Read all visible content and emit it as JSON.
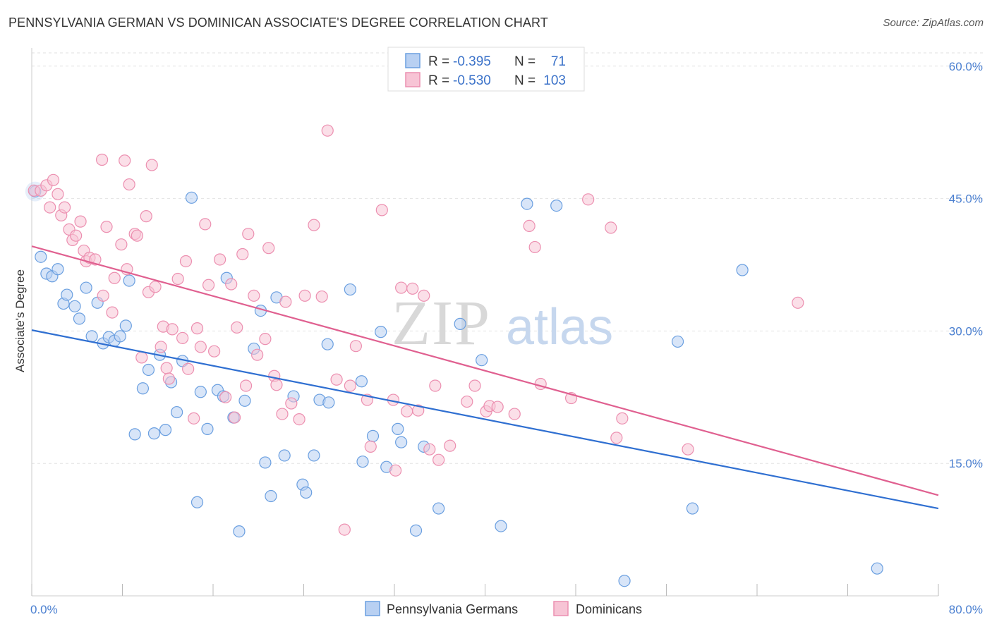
{
  "title": "PENNSYLVANIA GERMAN VS DOMINICAN ASSOCIATE'S DEGREE CORRELATION CHART",
  "source": "Source: ZipAtlas.com",
  "watermark": {
    "zip": "ZIP",
    "atlas": "atlas"
  },
  "chart_data": {
    "type": "scatter",
    "xlabel": "",
    "ylabel": "Associate's Degree",
    "xlim": [
      0,
      80
    ],
    "ylim": [
      0,
      61.5
    ],
    "x_tick_labels": [
      "0.0%",
      "80.0%"
    ],
    "y_ticks": [
      15,
      30,
      45,
      60
    ],
    "y_tick_labels": [
      "15.0%",
      "30.0%",
      "45.0%",
      "60.0%"
    ],
    "grid": true,
    "legend_position": "top-center",
    "legend": [
      {
        "r_label": "R = ",
        "r_value": "-0.395",
        "n_label": "N = ",
        "n_value": "71"
      },
      {
        "r_label": "R = ",
        "r_value": "-0.530",
        "n_label": "N = ",
        "n_value": "103"
      }
    ],
    "series": [
      {
        "name": "Pennsylvania Germans",
        "color": "#6a9fe0",
        "fill": "#b8d0f2",
        "line_color": "#2f6fd1",
        "trend": {
          "x0": 0,
          "y0": 30.1,
          "x1": 80,
          "y1": 9.9
        },
        "points": [
          [
            0.3,
            45.8
          ],
          [
            0.8,
            38.4
          ],
          [
            1.3,
            36.5
          ],
          [
            1.8,
            36.2
          ],
          [
            2.3,
            37.0
          ],
          [
            2.8,
            33.1
          ],
          [
            3.1,
            34.1
          ],
          [
            3.8,
            32.8
          ],
          [
            4.2,
            31.4
          ],
          [
            4.8,
            34.9
          ],
          [
            5.3,
            29.4
          ],
          [
            5.8,
            33.2
          ],
          [
            6.3,
            28.6
          ],
          [
            6.8,
            29.3
          ],
          [
            7.3,
            28.9
          ],
          [
            7.8,
            29.4
          ],
          [
            8.3,
            30.6
          ],
          [
            8.6,
            35.7
          ],
          [
            9.1,
            18.3
          ],
          [
            9.8,
            23.5
          ],
          [
            10.3,
            25.6
          ],
          [
            10.8,
            18.4
          ],
          [
            11.3,
            27.3
          ],
          [
            11.8,
            18.8
          ],
          [
            12.3,
            24.2
          ],
          [
            12.8,
            20.8
          ],
          [
            13.3,
            26.6
          ],
          [
            14.1,
            45.1
          ],
          [
            14.6,
            10.6
          ],
          [
            14.9,
            23.1
          ],
          [
            15.5,
            18.9
          ],
          [
            16.4,
            23.3
          ],
          [
            16.9,
            22.6
          ],
          [
            17.2,
            36.0
          ],
          [
            17.8,
            20.2
          ],
          [
            18.3,
            7.3
          ],
          [
            18.8,
            22.1
          ],
          [
            19.6,
            28.0
          ],
          [
            20.2,
            32.3
          ],
          [
            20.6,
            15.1
          ],
          [
            21.1,
            11.3
          ],
          [
            21.6,
            33.8
          ],
          [
            22.3,
            15.9
          ],
          [
            23.1,
            22.6
          ],
          [
            23.9,
            12.6
          ],
          [
            24.2,
            11.7
          ],
          [
            24.9,
            15.9
          ],
          [
            25.4,
            22.2
          ],
          [
            26.2,
            21.9
          ],
          [
            26.1,
            28.5
          ],
          [
            28.1,
            34.7
          ],
          [
            29.1,
            24.3
          ],
          [
            29.2,
            15.2
          ],
          [
            30.1,
            18.1
          ],
          [
            30.8,
            29.9
          ],
          [
            31.3,
            14.6
          ],
          [
            32.3,
            18.9
          ],
          [
            32.6,
            17.4
          ],
          [
            33.9,
            7.4
          ],
          [
            34.6,
            16.9
          ],
          [
            35.9,
            9.9
          ],
          [
            37.8,
            30.8
          ],
          [
            39.7,
            26.7
          ],
          [
            41.4,
            7.9
          ],
          [
            43.7,
            44.4
          ],
          [
            46.3,
            44.2
          ],
          [
            52.3,
            1.7
          ],
          [
            57.0,
            28.8
          ],
          [
            58.3,
            9.9
          ],
          [
            62.7,
            36.9
          ],
          [
            74.6,
            3.1
          ]
        ]
      },
      {
        "name": "Dominicans",
        "color": "#ec8fb0",
        "fill": "#f7c4d5",
        "line_color": "#e06090",
        "trend": {
          "x0": 0,
          "y0": 39.6,
          "x1": 80,
          "y1": 11.4
        },
        "points": [
          [
            0.2,
            45.9
          ],
          [
            0.8,
            45.9
          ],
          [
            1.3,
            46.5
          ],
          [
            1.6,
            44.0
          ],
          [
            1.9,
            47.1
          ],
          [
            2.3,
            45.5
          ],
          [
            2.6,
            43.1
          ],
          [
            2.9,
            44.0
          ],
          [
            3.3,
            41.5
          ],
          [
            3.6,
            40.3
          ],
          [
            3.9,
            40.8
          ],
          [
            4.3,
            42.4
          ],
          [
            4.6,
            39.1
          ],
          [
            4.8,
            37.9
          ],
          [
            5.1,
            38.3
          ],
          [
            5.6,
            38.1
          ],
          [
            6.2,
            49.4
          ],
          [
            6.3,
            34.0
          ],
          [
            6.6,
            41.8
          ],
          [
            7.1,
            32.1
          ],
          [
            7.3,
            36.0
          ],
          [
            7.9,
            39.8
          ],
          [
            8.2,
            49.3
          ],
          [
            8.4,
            37.0
          ],
          [
            8.6,
            46.6
          ],
          [
            9.1,
            41.0
          ],
          [
            9.3,
            40.8
          ],
          [
            9.7,
            27.0
          ],
          [
            10.1,
            43.0
          ],
          [
            10.3,
            34.4
          ],
          [
            10.6,
            48.8
          ],
          [
            10.9,
            35.0
          ],
          [
            11.4,
            28.2
          ],
          [
            11.6,
            30.5
          ],
          [
            11.9,
            25.8
          ],
          [
            12.1,
            24.6
          ],
          [
            12.4,
            30.2
          ],
          [
            12.9,
            35.9
          ],
          [
            13.3,
            29.2
          ],
          [
            13.6,
            37.9
          ],
          [
            13.8,
            25.7
          ],
          [
            14.3,
            20.1
          ],
          [
            14.6,
            30.3
          ],
          [
            14.9,
            28.2
          ],
          [
            15.3,
            42.1
          ],
          [
            15.6,
            35.2
          ],
          [
            16.1,
            27.7
          ],
          [
            16.6,
            38.1
          ],
          [
            17.1,
            22.5
          ],
          [
            17.6,
            35.3
          ],
          [
            17.9,
            20.2
          ],
          [
            18.1,
            30.4
          ],
          [
            18.6,
            38.7
          ],
          [
            18.9,
            23.8
          ],
          [
            19.1,
            41.0
          ],
          [
            19.6,
            34.0
          ],
          [
            19.9,
            27.3
          ],
          [
            20.6,
            29.1
          ],
          [
            20.9,
            39.4
          ],
          [
            21.4,
            24.9
          ],
          [
            21.6,
            23.9
          ],
          [
            22.1,
            20.6
          ],
          [
            22.4,
            33.3
          ],
          [
            22.9,
            21.8
          ],
          [
            23.6,
            20.0
          ],
          [
            24.1,
            34.0
          ],
          [
            24.9,
            42.0
          ],
          [
            25.6,
            33.9
          ],
          [
            26.1,
            52.7
          ],
          [
            26.9,
            24.5
          ],
          [
            27.6,
            7.5
          ],
          [
            28.1,
            23.8
          ],
          [
            28.6,
            28.3
          ],
          [
            29.6,
            22.2
          ],
          [
            29.9,
            16.9
          ],
          [
            30.9,
            43.7
          ],
          [
            31.9,
            22.2
          ],
          [
            32.1,
            14.2
          ],
          [
            32.6,
            34.9
          ],
          [
            33.1,
            20.9
          ],
          [
            33.6,
            34.8
          ],
          [
            34.1,
            21.0
          ],
          [
            34.6,
            34.0
          ],
          [
            35.1,
            16.6
          ],
          [
            35.6,
            23.8
          ],
          [
            35.9,
            15.4
          ],
          [
            36.9,
            17.0
          ],
          [
            38.4,
            22.0
          ],
          [
            39.1,
            23.8
          ],
          [
            40.1,
            20.9
          ],
          [
            40.4,
            21.5
          ],
          [
            41.1,
            21.4
          ],
          [
            42.6,
            20.6
          ],
          [
            43.9,
            41.9
          ],
          [
            44.4,
            39.5
          ],
          [
            44.9,
            24.0
          ],
          [
            47.6,
            22.4
          ],
          [
            49.1,
            44.9
          ],
          [
            51.1,
            41.7
          ],
          [
            51.6,
            17.9
          ],
          [
            52.1,
            20.1
          ],
          [
            57.9,
            16.6
          ],
          [
            67.6,
            33.2
          ]
        ]
      }
    ]
  },
  "bottom_legend": [
    {
      "label": "Pennsylvania Germans",
      "color": "#b8d0f2",
      "border": "#6a9fe0"
    },
    {
      "label": "Dominicans",
      "color": "#f7c4d5",
      "border": "#ec8fb0"
    }
  ]
}
